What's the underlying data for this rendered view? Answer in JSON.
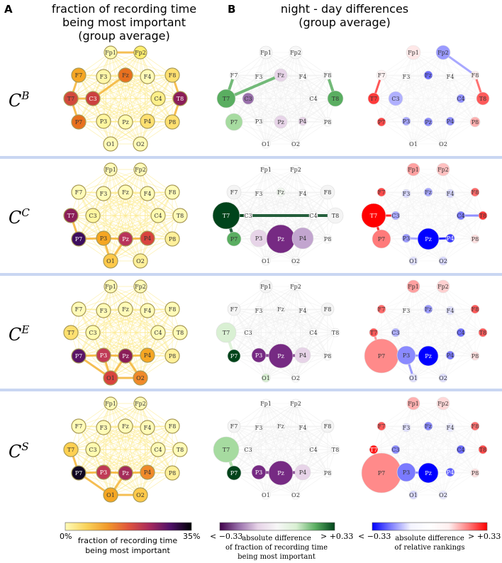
{
  "panel_a": {
    "letter": "A",
    "title_line1": "fraction of recording time",
    "title_line2": "being most important",
    "title_line3": "(group average)"
  },
  "panel_b": {
    "letter": "B",
    "title_line1": "night - day differences",
    "title_line2": "(group average)"
  },
  "rows": [
    {
      "base": "C",
      "sup": "B"
    },
    {
      "base": "C",
      "sup": "C"
    },
    {
      "base": "C",
      "sup": "E"
    },
    {
      "base": "C",
      "sup": "S"
    }
  ],
  "colorbars": {
    "a": {
      "min_label": "0%",
      "max_label": "35%",
      "caption_line1": "fraction of recording time",
      "caption_line2": "being most important",
      "stops": [
        "#fffbb8",
        "#f9d35a",
        "#f19a2b",
        "#e0553c",
        "#a82a5c",
        "#4f1068",
        "#000004"
      ]
    },
    "b1": {
      "min_label": "< −0.33",
      "max_label": "> +0.33",
      "caption_line1": "absolute difference",
      "caption_line2": "of fraction of recording time",
      "caption_line3": "being most important",
      "stops": [
        "#40004b",
        "#9970ab",
        "#e7d4e8",
        "#f7f7f7",
        "#d9f0d3",
        "#5aae61",
        "#00441b"
      ]
    },
    "b2": {
      "min_label": "< −0.33",
      "max_label": "> +0.33",
      "caption_line1": "absolute difference",
      "caption_line2": "of relative rankings",
      "stops": [
        "#0000ff",
        "#8080ff",
        "#f4f4ff",
        "#ffffff",
        "#fff0f0",
        "#ff8080",
        "#ff0000"
      ]
    }
  },
  "colors": {
    "divider": "#c9d6f2",
    "node_stroke_a": "#a89a56",
    "edge_a": "#f5e25a"
  },
  "electrodes": [
    "Fp1",
    "Fp2",
    "F7",
    "F3",
    "Fz",
    "F4",
    "F8",
    "T7",
    "C3",
    "C4",
    "T8",
    "P7",
    "P3",
    "Pz",
    "P4",
    "P8",
    "O1",
    "O2"
  ],
  "nodes_a": [
    {
      "Fp1": "#fffbb0",
      "Fp2": "#ffee70",
      "F7": "#f5a623",
      "F3": "#fff6a8",
      "Fz": "#e8701e",
      "F4": "#fffbb8",
      "F8": "#ffe070",
      "T7": "#d24a3c",
      "C3": "#cb4040",
      "C4": "#fdf08a",
      "T8": "#8b1e58",
      "P7": "#e8701e",
      "P3": "#fff6a0",
      "Pz": "#fffbb0",
      "P4": "#ffe070",
      "P8": "#ffe070",
      "O1": "#fffbb8",
      "O2": "#fffbb8"
    },
    {
      "Fp1": "#fffbb8",
      "Fp2": "#fffbb8",
      "F7": "#fffbb8",
      "F3": "#fffbb8",
      "Fz": "#fffbb8",
      "F4": "#fffbb8",
      "F8": "#fffbb8",
      "T7": "#8b1e58",
      "C3": "#fff6a0",
      "C4": "#fffbb0",
      "T8": "#fffbb8",
      "P7": "#3d0d5c",
      "P3": "#f5a623",
      "Pz": "#b8345a",
      "P4": "#d8443e",
      "P8": "#fff09a",
      "O1": "#ffc94a",
      "O2": "#fff09a"
    },
    {
      "Fp1": "#fffbb8",
      "Fp2": "#fffbb8",
      "F7": "#fffbb8",
      "F3": "#fffbb8",
      "Fz": "#fffbb8",
      "F4": "#fffbb8",
      "F8": "#fffbb8",
      "T7": "#ffe070",
      "C3": "#fffbb0",
      "C4": "#fffbb8",
      "T8": "#fffbb8",
      "P7": "#5a1466",
      "P3": "#c03a56",
      "Pz": "#8b1e58",
      "P4": "#f5a623",
      "P8": "#fff09a",
      "O1": "#d8443e",
      "O2": "#f08a2a"
    },
    {
      "Fp1": "#fffbb8",
      "Fp2": "#fffbb8",
      "F7": "#fffbb8",
      "F3": "#fffbb8",
      "Fz": "#fffbb8",
      "F4": "#fffbb8",
      "F8": "#fffbb8",
      "T7": "#ffd050",
      "C3": "#fffbb0",
      "C4": "#fffbb8",
      "T8": "#fffbb8",
      "P7": "#120822",
      "P3": "#c03a56",
      "Pz": "#a42c5a",
      "P4": "#f08a2a",
      "P8": "#fff09a",
      "O1": "#f5a623",
      "O2": "#ffc94a"
    }
  ],
  "nodes_b": [
    {
      "Fp1": {
        "c": "#f7f7f7",
        "r": 9
      },
      "Fp2": {
        "c": "#f7f7f7",
        "r": 9
      },
      "F7": {
        "c": "#ffffff",
        "r": 6
      },
      "F3": {
        "c": "#ffffff",
        "r": 6
      },
      "Fz": {
        "c": "#e7d4e8",
        "r": 9
      },
      "F4": {
        "c": "#ffffff",
        "r": 6
      },
      "F8": {
        "c": "#ffffff",
        "r": 6
      },
      "T7": {
        "c": "#5aae61",
        "r": 13
      },
      "C3": {
        "c": "#9970ab",
        "r": 8
      },
      "C4": {
        "c": "#ffffff",
        "r": 6
      },
      "T8": {
        "c": "#5aae61",
        "r": 11
      },
      "P7": {
        "c": "#a6dba0",
        "r": 12
      },
      "P3": {
        "c": "#ffffff",
        "r": 6
      },
      "Pz": {
        "c": "#e7d4e8",
        "r": 9
      },
      "P4": {
        "c": "#e7d4e8",
        "r": 6
      },
      "P8": {
        "c": "#ffffff",
        "r": 6
      },
      "O1": {
        "c": "#ffffff",
        "r": 6
      },
      "O2": {
        "c": "#ffffff",
        "r": 6
      }
    },
    {
      "Fp1": {
        "c": "#ffffff",
        "r": 6
      },
      "Fp2": {
        "c": "#ffffff",
        "r": 6
      },
      "F7": {
        "c": "#f4f4f4",
        "r": 10
      },
      "F3": {
        "c": "#ffffff",
        "r": 6
      },
      "Fz": {
        "c": "#f1f8ef",
        "r": 6
      },
      "F4": {
        "c": "#ffffff",
        "r": 6
      },
      "F8": {
        "c": "#f4f4f4",
        "r": 10
      },
      "T7": {
        "c": "#00441b",
        "r": 19
      },
      "C3": {
        "c": "#ffffff",
        "r": 6
      },
      "C4": {
        "c": "#ffffff",
        "r": 6
      },
      "T8": {
        "c": "#f4f4f4",
        "r": 11
      },
      "P7": {
        "c": "#5aae61",
        "r": 10
      },
      "P3": {
        "c": "#e7d4e8",
        "r": 12
      },
      "Pz": {
        "c": "#762a83",
        "r": 20
      },
      "P4": {
        "c": "#c2a5cf",
        "r": 15
      },
      "P8": {
        "c": "#ffffff",
        "r": 6
      },
      "O1": {
        "c": "#ffffff",
        "r": 6
      },
      "O2": {
        "c": "#ffffff",
        "r": 6
      }
    },
    {
      "Fp1": {
        "c": "#f4f4f4",
        "r": 9
      },
      "Fp2": {
        "c": "#ffffff",
        "r": 6
      },
      "F7": {
        "c": "#f4f4f4",
        "r": 9
      },
      "F3": {
        "c": "#ffffff",
        "r": 6
      },
      "Fz": {
        "c": "#ffffff",
        "r": 6
      },
      "F4": {
        "c": "#ffffff",
        "r": 6
      },
      "F8": {
        "c": "#f4f4f4",
        "r": 9
      },
      "T7": {
        "c": "#d9f0d3",
        "r": 14
      },
      "C3": {
        "c": "#ffffff",
        "r": 6
      },
      "C4": {
        "c": "#ffffff",
        "r": 6
      },
      "T8": {
        "c": "#ffffff",
        "r": 6
      },
      "P7": {
        "c": "#00441b",
        "r": 9
      },
      "P3": {
        "c": "#762a83",
        "r": 10
      },
      "Pz": {
        "c": "#762a83",
        "r": 17
      },
      "P4": {
        "c": "#e7d4e8",
        "r": 11
      },
      "P8": {
        "c": "#ffffff",
        "r": 6
      },
      "O1": {
        "c": "#d9f0d3",
        "r": 6
      },
      "O2": {
        "c": "#ffffff",
        "r": 6
      }
    },
    {
      "Fp1": {
        "c": "#ffffff",
        "r": 6
      },
      "Fp2": {
        "c": "#ffffff",
        "r": 6
      },
      "F7": {
        "c": "#f4f4f4",
        "r": 9
      },
      "F3": {
        "c": "#ffffff",
        "r": 6
      },
      "Fz": {
        "c": "#ffffff",
        "r": 6
      },
      "F4": {
        "c": "#ffffff",
        "r": 6
      },
      "F8": {
        "c": "#f4f4f4",
        "r": 9
      },
      "T7": {
        "c": "#a6dba0",
        "r": 18
      },
      "C3": {
        "c": "#ffffff",
        "r": 6
      },
      "C4": {
        "c": "#ffffff",
        "r": 6
      },
      "T8": {
        "c": "#ffffff",
        "r": 6
      },
      "P7": {
        "c": "#00441b",
        "r": 10
      },
      "P3": {
        "c": "#762a83",
        "r": 10
      },
      "Pz": {
        "c": "#762a83",
        "r": 17
      },
      "P4": {
        "c": "#e7d4e8",
        "r": 11
      },
      "P8": {
        "c": "#ffffff",
        "r": 6
      },
      "O1": {
        "c": "#ffffff",
        "r": 6
      },
      "O2": {
        "c": "#ffffff",
        "r": 6
      }
    }
  ],
  "nodes_c": [
    {
      "Fp1": {
        "c": "#ffe8e8",
        "r": 10
      },
      "Fp2": {
        "c": "#9a9aff",
        "r": 10
      },
      "F7": {
        "c": "#fff4f4",
        "r": 7
      },
      "F3": {
        "c": "#ffffff",
        "r": 6
      },
      "Fz": {
        "c": "#6f6fff",
        "r": 6
      },
      "F4": {
        "c": "#ffffff",
        "r": 6
      },
      "F8": {
        "c": "#fff0f0",
        "r": 6
      },
      "T7": {
        "c": "#ff3a3a",
        "r": 8
      },
      "C3": {
        "c": "#b0b0ff",
        "r": 10
      },
      "C4": {
        "c": "#8e8eff",
        "r": 6
      },
      "T8": {
        "c": "#ff5a5a",
        "r": 9
      },
      "P7": {
        "c": "#ff4a4a",
        "r": 6
      },
      "P3": {
        "c": "#a8a8ff",
        "r": 6
      },
      "Pz": {
        "c": "#8e8eff",
        "r": 6
      },
      "P4": {
        "c": "#8e8eff",
        "r": 6
      },
      "P8": {
        "c": "#ffb0b0",
        "r": 7
      },
      "O1": {
        "c": "#ffffff",
        "r": 6
      },
      "O2": {
        "c": "#ffffff",
        "r": 6
      }
    },
    {
      "Fp1": {
        "c": "#ffa0a0",
        "r": 9
      },
      "Fp2": {
        "c": "#ffc0c0",
        "r": 9
      },
      "F7": {
        "c": "#ff4a4a",
        "r": 6
      },
      "F3": {
        "c": "#d8d8ff",
        "r": 6
      },
      "Fz": {
        "c": "#a8a8ff",
        "r": 6
      },
      "F4": {
        "c": "#d8d8ff",
        "r": 6
      },
      "F8": {
        "c": "#ff6a6a",
        "r": 6
      },
      "T7": {
        "c": "#ff0000",
        "r": 17
      },
      "C3": {
        "c": "#a8a8ff",
        "r": 6
      },
      "C4": {
        "c": "#7a7aff",
        "r": 6
      },
      "T8": {
        "c": "#ff3a3a",
        "r": 6
      },
      "P7": {
        "c": "#ff7a7a",
        "r": 13
      },
      "P3": {
        "c": "#9a9aff",
        "r": 6
      },
      "Pz": {
        "c": "#0000ff",
        "r": 15
      },
      "P4": {
        "c": "#3a3aff",
        "r": 6
      },
      "P8": {
        "c": "#ffe0e0",
        "r": 6
      },
      "O1": {
        "c": "#e0e0ff",
        "r": 6
      },
      "O2": {
        "c": "#d8d8ff",
        "r": 6
      }
    },
    {
      "Fp1": {
        "c": "#ffa0a0",
        "r": 9
      },
      "Fp2": {
        "c": "#ffd0d0",
        "r": 9
      },
      "F7": {
        "c": "#ff6a6a",
        "r": 6
      },
      "F3": {
        "c": "#ffffff",
        "r": 6
      },
      "Fz": {
        "c": "#9a9aff",
        "r": 6
      },
      "F4": {
        "c": "#e0e0ff",
        "r": 6
      },
      "F8": {
        "c": "#ff5a5a",
        "r": 6
      },
      "T7": {
        "c": "#ff5a5a",
        "r": 6
      },
      "C3": {
        "c": "#b0b0ff",
        "r": 6
      },
      "C4": {
        "c": "#7070ff",
        "r": 6
      },
      "T8": {
        "c": "#ff5a5a",
        "r": 6
      },
      "P7": {
        "c": "#ff8a8a",
        "r": 24
      },
      "P3": {
        "c": "#8a8aff",
        "r": 13
      },
      "Pz": {
        "c": "#0000ff",
        "r": 14
      },
      "P4": {
        "c": "#7a7aff",
        "r": 6
      },
      "P8": {
        "c": "#ffe0e0",
        "r": 6
      },
      "O1": {
        "c": "#e0e0ff",
        "r": 6
      },
      "O2": {
        "c": "#e0e0ff",
        "r": 6
      }
    },
    {
      "Fp1": {
        "c": "#ffb0b0",
        "r": 9
      },
      "Fp2": {
        "c": "#ffd8d8",
        "r": 9
      },
      "F7": {
        "c": "#ff5a5a",
        "r": 6
      },
      "F3": {
        "c": "#e0e0ff",
        "r": 6
      },
      "Fz": {
        "c": "#8a8aff",
        "r": 6
      },
      "F4": {
        "c": "#e8e8ff",
        "r": 6
      },
      "F8": {
        "c": "#ff7070",
        "r": 6
      },
      "T7": {
        "c": "#ff1a1a",
        "r": 6
      },
      "C3": {
        "c": "#8a8aff",
        "r": 6
      },
      "C4": {
        "c": "#6a6aff",
        "r": 6
      },
      "T8": {
        "c": "#ff4a4a",
        "r": 6
      },
      "P7": {
        "c": "#ff8a8a",
        "r": 28
      },
      "P3": {
        "c": "#7a7aff",
        "r": 13
      },
      "Pz": {
        "c": "#0000ff",
        "r": 14
      },
      "P4": {
        "c": "#5a5aff",
        "r": 6
      },
      "P8": {
        "c": "#ffe0e0",
        "r": 6
      },
      "O1": {
        "c": "#d8d8ff",
        "r": 6
      },
      "O2": {
        "c": "#e8e8ff",
        "r": 6
      }
    }
  ],
  "highlight_edges_a": [
    [
      [
        "F7",
        "T7"
      ],
      [
        "T7",
        "P7"
      ],
      [
        "C3",
        "T7"
      ],
      [
        "Fz",
        "C3"
      ],
      [
        "F8",
        "T8"
      ],
      [
        "T8",
        "P8"
      ],
      [
        "Fp1",
        "Fp2"
      ]
    ],
    [
      [
        "T7",
        "P7"
      ],
      [
        "P7",
        "P3"
      ],
      [
        "P3",
        "Pz"
      ],
      [
        "Pz",
        "P4"
      ],
      [
        "P3",
        "O1"
      ],
      [
        "Pz",
        "O1"
      ]
    ],
    [
      [
        "P7",
        "P3"
      ],
      [
        "P3",
        "Pz"
      ],
      [
        "Pz",
        "P4"
      ],
      [
        "P3",
        "O1"
      ],
      [
        "O1",
        "O2"
      ],
      [
        "Pz",
        "O2"
      ],
      [
        "P7",
        "O1"
      ],
      [
        "Pz",
        "O1"
      ]
    ],
    [
      [
        "P7",
        "P3"
      ],
      [
        "P3",
        "Pz"
      ],
      [
        "Pz",
        "P4"
      ],
      [
        "P7",
        "O1"
      ],
      [
        "O1",
        "O2"
      ],
      [
        "Pz",
        "O1"
      ],
      [
        "T7",
        "P7"
      ]
    ]
  ],
  "highlight_edges_b": [
    [
      [
        "T7",
        "F7"
      ],
      [
        "F8",
        "T8"
      ],
      [
        "T7",
        "Fz"
      ]
    ],
    [
      [
        "T7",
        "P7"
      ],
      [
        "T7",
        "T8"
      ],
      [
        "T7",
        "C3"
      ],
      [
        "Pz",
        "P4"
      ]
    ],
    [
      [
        "T7",
        "P7"
      ],
      [
        "Pz",
        "P3"
      ],
      [
        "Pz",
        "P4"
      ]
    ],
    [
      [
        "T7",
        "P7"
      ],
      [
        "Pz",
        "P3"
      ],
      [
        "Pz",
        "P4"
      ]
    ]
  ],
  "highlight_edges_c": [
    [
      [
        "T7",
        "F7"
      ],
      [
        "T8",
        "F8"
      ],
      [
        "Fp2",
        "F8"
      ]
    ],
    [
      [
        "T7",
        "P7"
      ],
      [
        "P3",
        "Pz"
      ],
      [
        "Pz",
        "P4"
      ],
      [
        "T7",
        "C3"
      ],
      [
        "C4",
        "T8"
      ]
    ],
    [
      [
        "P7",
        "T7"
      ],
      [
        "P3",
        "Pz"
      ],
      [
        "P3",
        "O1"
      ]
    ],
    [
      [
        "P7",
        "T7"
      ],
      [
        "P3",
        "Pz"
      ],
      [
        "P7",
        "P3"
      ]
    ]
  ]
}
